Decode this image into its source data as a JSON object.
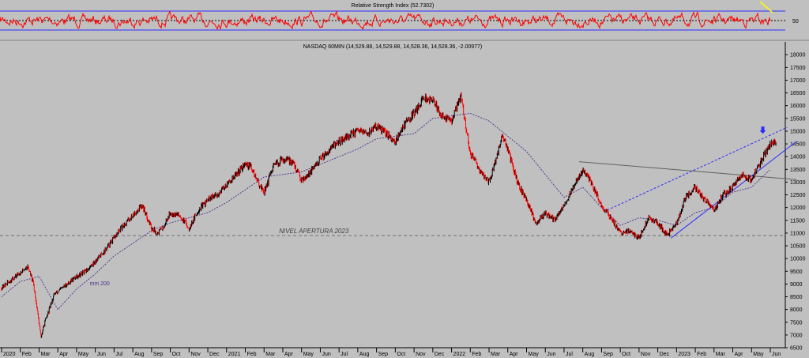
{
  "rsi_panel": {
    "title": "Relative Strength Index (52.7302)",
    "tick_label": "50",
    "levels": [
      70,
      50,
      30
    ],
    "line_color": "#ff0000",
    "level_color": "#2b2bff",
    "mid_color": "#000000",
    "highlight_color": "#ffff00"
  },
  "chart_data": {
    "type": "line",
    "title": "NASDAQ 60MIN (14,529.88, 14,529.88, 14,528.36, 14,528.36, -2.00977)",
    "ylim": [
      6500,
      18100
    ],
    "y_ticks": [
      18000,
      17500,
      17000,
      16500,
      16000,
      15500,
      15000,
      14500,
      14000,
      13500,
      13000,
      12500,
      12000,
      11500,
      11000,
      10500,
      10000,
      9500,
      9000,
      8500,
      8000,
      7500,
      7000,
      6500
    ],
    "x_ticks": [
      {
        "label": "2020",
        "t": 0
      },
      {
        "label": "Feb",
        "t": 1
      },
      {
        "label": "Mar",
        "t": 2
      },
      {
        "label": "Apr",
        "t": 3
      },
      {
        "label": "May",
        "t": 4
      },
      {
        "label": "Jun",
        "t": 5
      },
      {
        "label": "Jul",
        "t": 6
      },
      {
        "label": "Aug",
        "t": 7
      },
      {
        "label": "Sep",
        "t": 8
      },
      {
        "label": "Oct",
        "t": 9
      },
      {
        "label": "Nov",
        "t": 10
      },
      {
        "label": "Dec",
        "t": 11
      },
      {
        "label": "2021",
        "t": 12
      },
      {
        "label": "Feb",
        "t": 13
      },
      {
        "label": "Mar",
        "t": 14
      },
      {
        "label": "Apr",
        "t": 15
      },
      {
        "label": "May",
        "t": 16
      },
      {
        "label": "Jun",
        "t": 17
      },
      {
        "label": "Jul",
        "t": 18
      },
      {
        "label": "Aug",
        "t": 19
      },
      {
        "label": "Sep",
        "t": 20
      },
      {
        "label": "Oct",
        "t": 21
      },
      {
        "label": "Nov",
        "t": 22
      },
      {
        "label": "Dec",
        "t": 23
      },
      {
        "label": "2022",
        "t": 24
      },
      {
        "label": "Feb",
        "t": 25
      },
      {
        "label": "Mar",
        "t": 26
      },
      {
        "label": "Apr",
        "t": 27
      },
      {
        "label": "May",
        "t": 28
      },
      {
        "label": "Jun",
        "t": 29
      },
      {
        "label": "Jul",
        "t": 30
      },
      {
        "label": "Aug",
        "t": 31
      },
      {
        "label": "Sep",
        "t": 32
      },
      {
        "label": "Oct",
        "t": 33
      },
      {
        "label": "Nov",
        "t": 34
      },
      {
        "label": "Dec",
        "t": 35
      },
      {
        "label": "2023",
        "t": 36
      },
      {
        "label": "Feb",
        "t": 37
      },
      {
        "label": "Mar",
        "t": 38
      },
      {
        "label": "Apr",
        "t": 39
      },
      {
        "label": "May",
        "t": 40
      },
      {
        "label": "Jun",
        "t": 41
      }
    ],
    "xlim": [
      0,
      42.4
    ],
    "series": [
      {
        "type": "candles",
        "colors": {
          "up": "#000000",
          "down": "#ff0000"
        },
        "x": [
          0,
          0.5,
          1,
          1.4,
          1.7,
          1.9,
          2.1,
          2.3,
          2.5,
          2.8,
          3,
          3.5,
          4,
          4.5,
          5,
          5.5,
          6,
          6.5,
          7,
          7.5,
          8,
          8.3,
          8.6,
          9,
          9.5,
          10,
          10.5,
          11,
          11.5,
          12,
          12.5,
          13,
          13.3,
          13.6,
          14,
          14.5,
          15,
          15.5,
          16,
          16.5,
          17,
          17.5,
          18,
          18.5,
          19,
          19.5,
          20,
          20.5,
          21,
          21.5,
          22,
          22.5,
          23,
          23.5,
          24,
          24.5,
          25,
          25.5,
          26,
          26.3,
          26.7,
          27,
          27.5,
          28,
          28.5,
          29,
          29.5,
          30,
          30.5,
          31,
          31.5,
          32,
          32.5,
          33,
          33.5,
          34,
          34.5,
          35,
          35.5,
          36,
          36.5,
          37,
          37.5,
          38,
          38.5,
          39,
          39.5,
          40,
          40.5,
          41,
          41.3
        ],
        "y": [
          8850,
          9150,
          9450,
          9700,
          9000,
          8000,
          6900,
          7500,
          7900,
          8600,
          8700,
          9000,
          9300,
          9500,
          9900,
          10300,
          10800,
          11300,
          11700,
          12100,
          11200,
          11000,
          11200,
          11800,
          11700,
          11200,
          11900,
          12300,
          12500,
          12900,
          13300,
          13700,
          13600,
          13100,
          12600,
          13600,
          13900,
          13800,
          13100,
          13400,
          13900,
          14300,
          14600,
          14800,
          15000,
          14900,
          15200,
          14900,
          14600,
          15300,
          15700,
          16300,
          16200,
          15600,
          15400,
          16400,
          14100,
          13500,
          13000,
          13700,
          14800,
          14300,
          13000,
          12300,
          11400,
          11800,
          11500,
          12100,
          12800,
          13500,
          12900,
          12100,
          11600,
          11000,
          11100,
          10800,
          11600,
          11400,
          10900,
          11400,
          12400,
          12800,
          12300,
          11900,
          12500,
          12800,
          13300,
          13100,
          13800,
          14500,
          14550
        ]
      },
      {
        "name": "mm 200",
        "type": "line",
        "color": "#4a2d8c",
        "x": [
          0,
          1,
          2,
          3,
          4,
          5,
          6,
          7,
          8,
          9,
          10,
          11,
          12,
          13,
          14,
          15,
          16,
          17,
          18,
          19,
          20,
          21,
          22,
          23,
          24,
          25,
          26,
          27,
          28,
          29,
          30,
          31,
          32,
          33,
          34,
          35,
          36,
          37,
          38,
          39,
          40,
          41
        ],
        "y": [
          8500,
          9100,
          9300,
          8000,
          8800,
          9400,
          10100,
          10600,
          11100,
          11400,
          11600,
          11800,
          12200,
          12700,
          13200,
          13300,
          13400,
          13700,
          14000,
          14300,
          14700,
          14800,
          14900,
          15500,
          15600,
          15700,
          15400,
          14800,
          14200,
          13300,
          12400,
          12800,
          12000,
          11300,
          11600,
          11500,
          11300,
          11800,
          12000,
          12600,
          12800,
          13500
        ]
      }
    ],
    "annotations": [
      {
        "type": "hline",
        "y": 10900,
        "label": "NIVEL APERTURA 2023",
        "label_x": 14.8,
        "color": "#707070",
        "style": "dashed"
      },
      {
        "type": "segment",
        "x": [
          30.8,
          42.4
        ],
        "y": [
          13800,
          13100
        ],
        "color": "#606060"
      },
      {
        "type": "segment",
        "x": [
          32.3,
          41.9
        ],
        "y": [
          11900,
          15150
        ],
        "color": "#2b2bff",
        "style": "dashed"
      },
      {
        "type": "segment",
        "x": [
          35.7,
          42.4
        ],
        "y": [
          10800,
          14600
        ],
        "color": "#2b2bff"
      },
      {
        "type": "label",
        "text": "mm 200",
        "x": 4.7,
        "y": 8950,
        "color": "#4a2d8c"
      },
      {
        "type": "arrow",
        "x": 40.6,
        "y": 14900,
        "color": "#2b2bff"
      }
    ]
  }
}
